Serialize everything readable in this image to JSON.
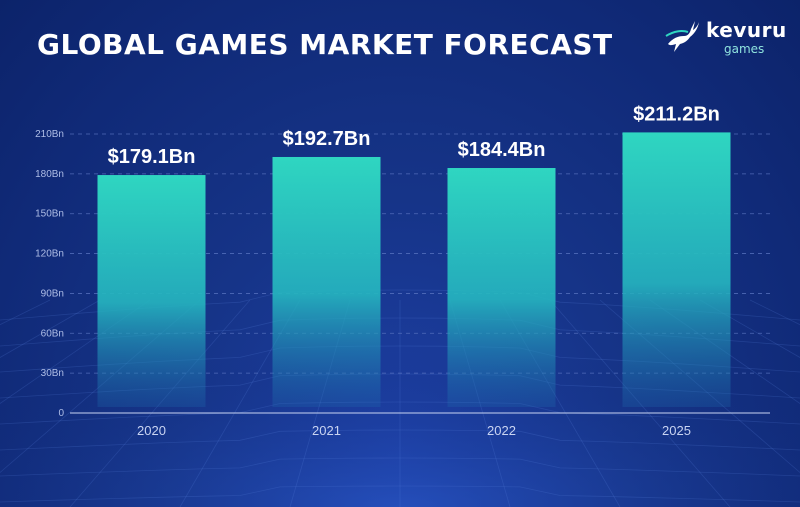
{
  "header": {
    "title": "GLOBAL GAMES MARKET FORECAST"
  },
  "logo": {
    "name": "kevuru",
    "subtitle": "games",
    "icon": "leaping-antelope-icon"
  },
  "colors": {
    "background": "#102a78",
    "bar_top": "#2fd6c1",
    "bar_bottom": "#1f7fb8",
    "grid": "#5f79c4",
    "text": "#ffffff"
  },
  "chart_data": {
    "type": "bar",
    "title": "GLOBAL GAMES MARKET FORECAST",
    "categories": [
      "2020",
      "2021",
      "2022",
      "2025"
    ],
    "values": [
      179.1,
      192.7,
      184.4,
      211.2
    ],
    "data_labels": [
      "$179.1Bn",
      "$192.7Bn",
      "$184.4Bn",
      "$211.2Bn"
    ],
    "xlabel": "",
    "ylabel": "",
    "ylim": [
      0,
      210
    ],
    "yticks": [
      0,
      30,
      60,
      90,
      120,
      150,
      180,
      210
    ],
    "ytick_labels": [
      "0",
      "30Bn",
      "60Bn",
      "90Bn",
      "120Bn",
      "150Bn",
      "180Bn",
      "210Bn"
    ],
    "grid": true,
    "legend": "none"
  }
}
